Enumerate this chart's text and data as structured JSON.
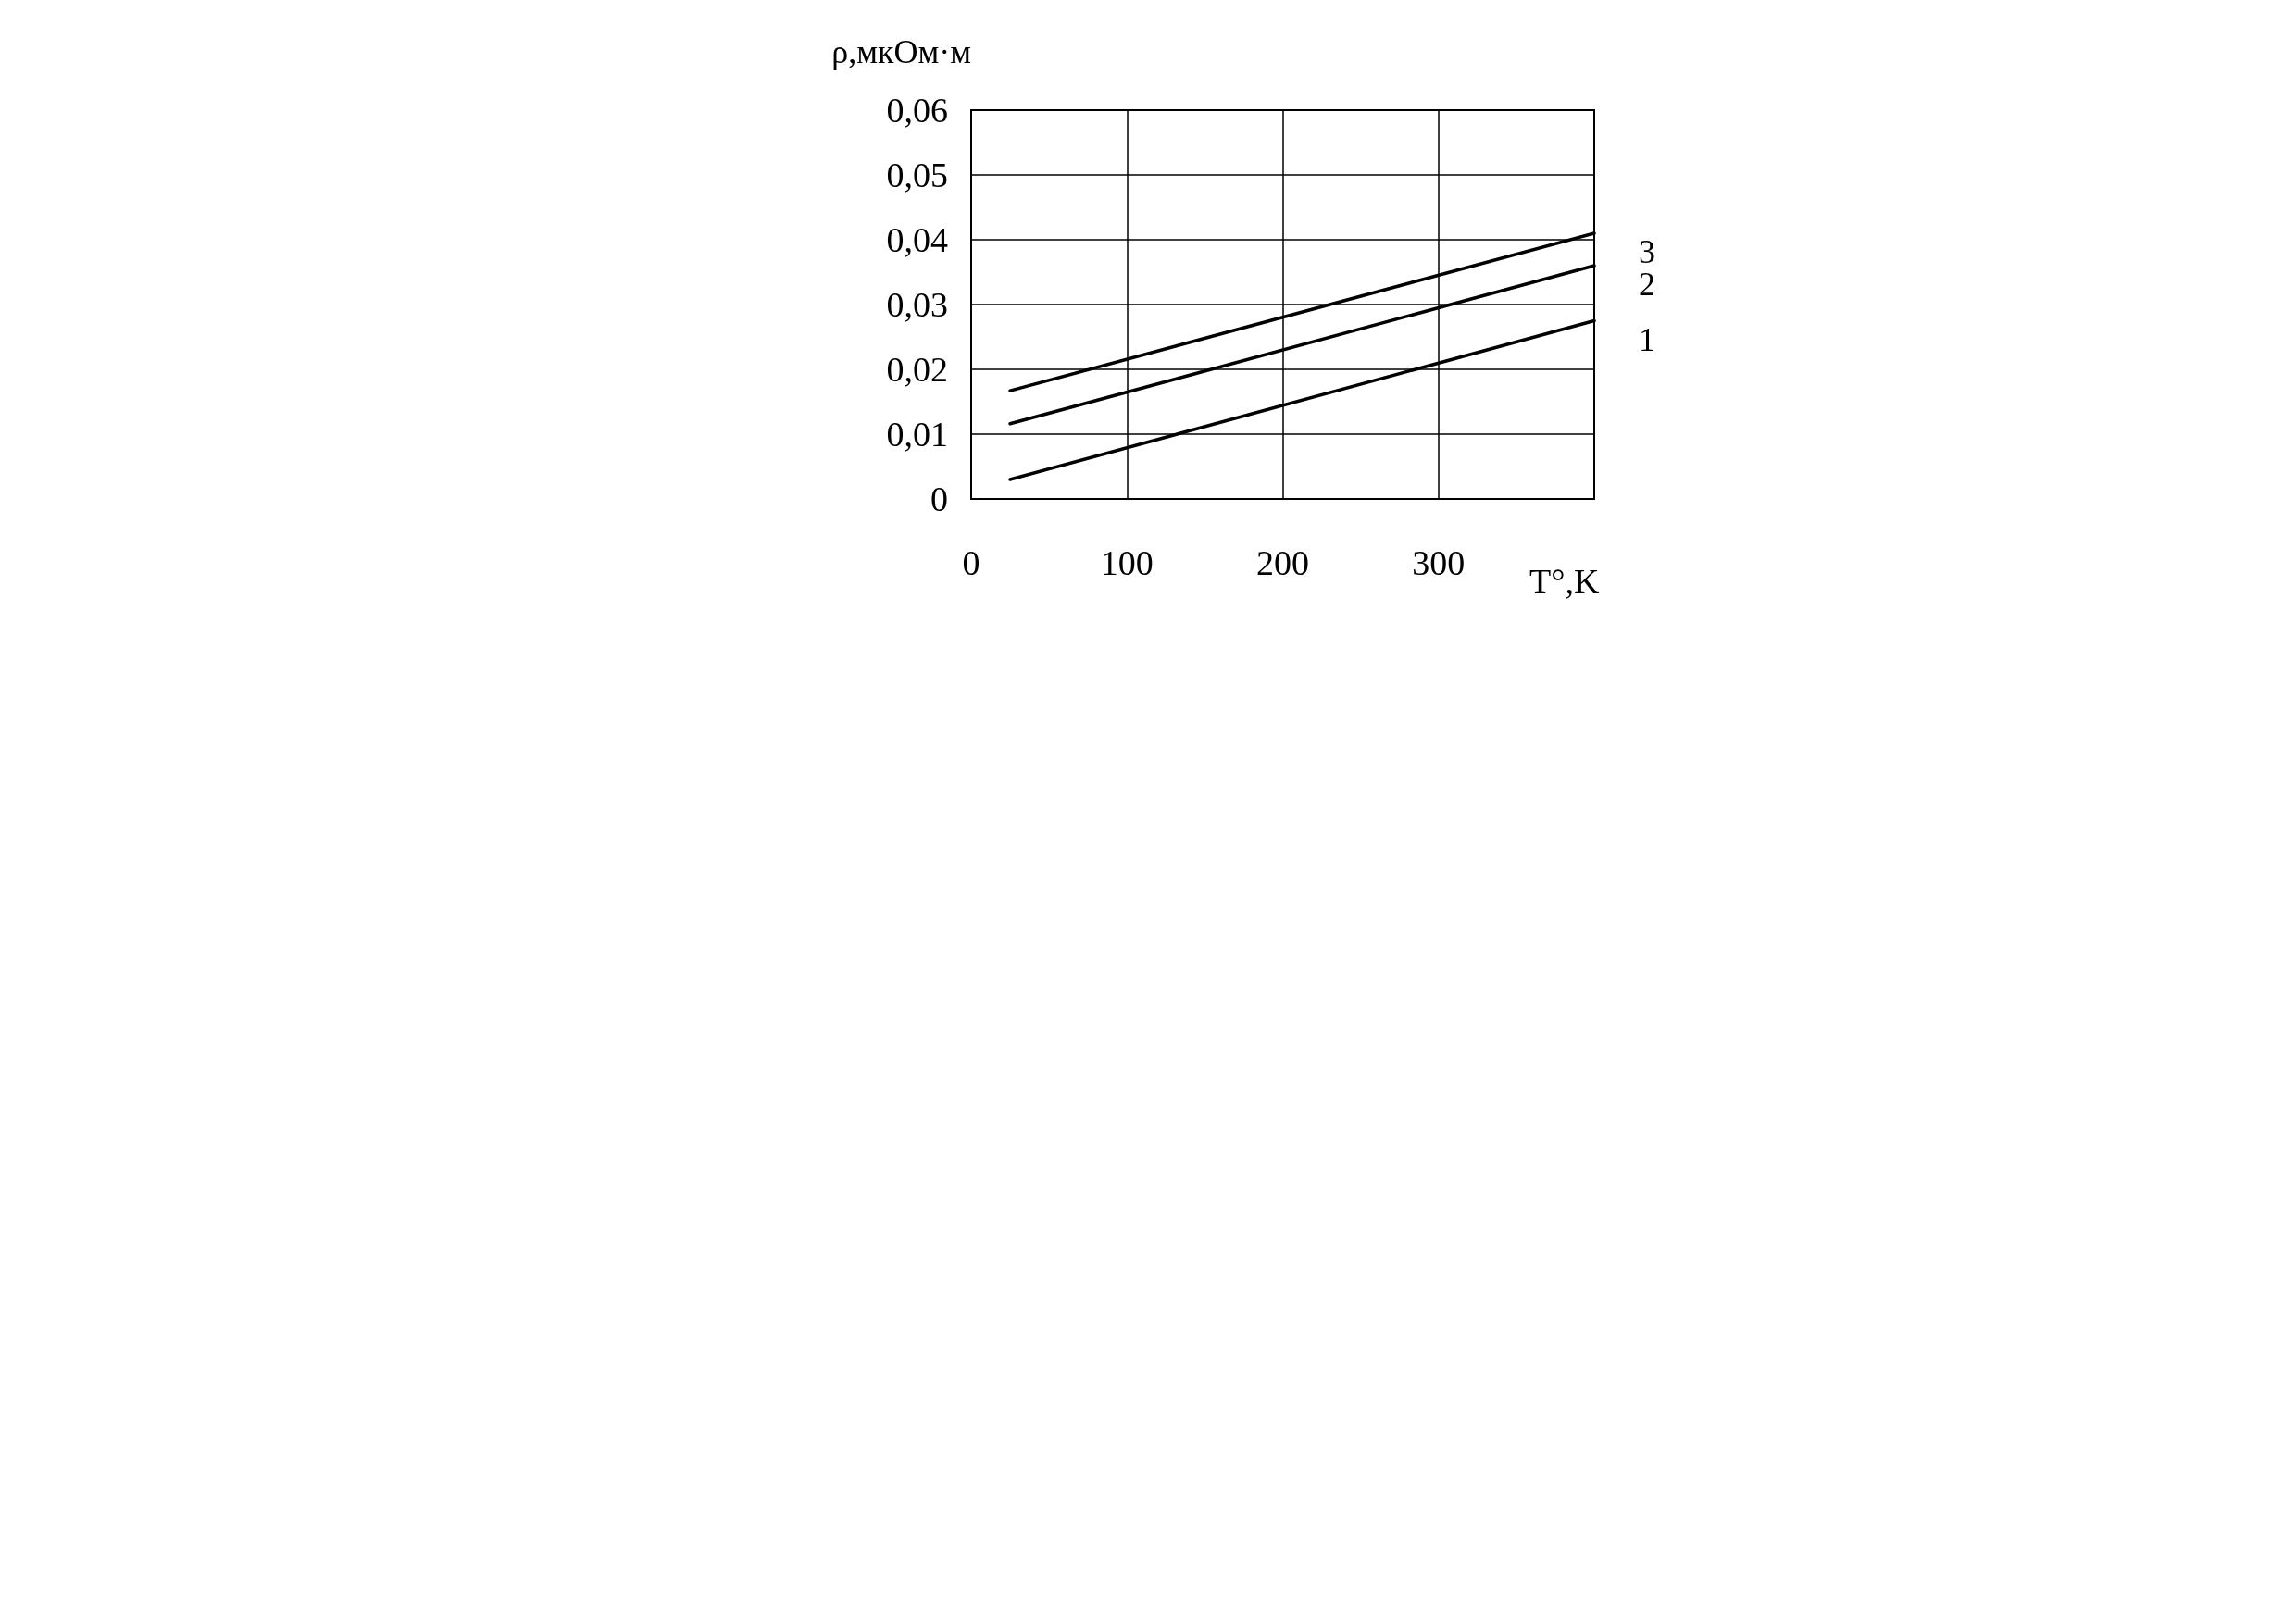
{
  "chart_data": {
    "type": "line",
    "xlabel": "T°,K",
    "ylabel": "ρ,мкОм·м",
    "xlim": [
      0,
      400
    ],
    "xticks": [
      0,
      100,
      200,
      300
    ],
    "ylim": [
      0,
      0.06
    ],
    "yticks": [
      {
        "value": 0,
        "label": "0"
      },
      {
        "value": 0.01,
        "label": "0,01"
      },
      {
        "value": 0.02,
        "label": "0,02"
      },
      {
        "value": 0.03,
        "label": "0,03"
      },
      {
        "value": 0.04,
        "label": "0,04"
      },
      {
        "value": 0.05,
        "label": "0,05"
      },
      {
        "value": 0.06,
        "label": "0,06"
      }
    ],
    "x": [
      25,
      400
    ],
    "series": [
      {
        "name": "1",
        "color": "#000000",
        "values": [
          0.003,
          0.0275
        ]
      },
      {
        "name": "2",
        "color": "#000000",
        "values": [
          0.0116,
          0.036
        ]
      },
      {
        "name": "3",
        "color": "#000000",
        "values": [
          0.0167,
          0.041
        ]
      }
    ],
    "grid": true,
    "legend": false,
    "marker": "none",
    "line_style": "solid"
  }
}
